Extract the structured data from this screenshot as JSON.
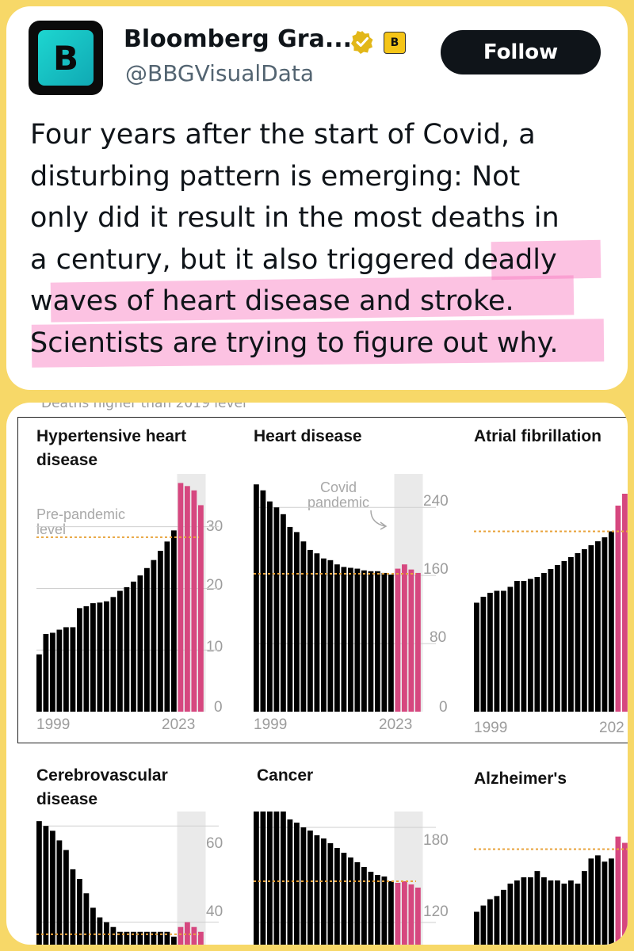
{
  "tweet": {
    "display_name": "Bloomberg Gra...",
    "handle": "@BBGVisualData",
    "avatar_letter": "B",
    "affiliate_letter": "B",
    "follow_label": "Follow",
    "lines": [
      "Four years after the start of Covid, a",
      "disturbing pattern is emerging: Not",
      "only did it result in the most deaths in",
      "a century, but it also triggered deadly",
      "waves of heart disease and stroke.",
      "Scientists are trying to figure out why."
    ]
  },
  "chart": {
    "cut_header": "Deaths higher than 2019 level",
    "colors": {
      "pre_pandemic": "#000000",
      "pandemic": "#d6477f",
      "reference": "#e8a33b",
      "shade": "#d9d9d9"
    },
    "annotations": {
      "covid_pandemic": "Covid\npandemic",
      "pre_pandemic_level": "Pre-pandemic\nlevel"
    },
    "panels": [
      {
        "title": "Hypertensive heart\ndisease",
        "x_start": "1999",
        "x_end": "2023",
        "y_ticks": [
          "30",
          "20",
          "10",
          "0"
        ]
      },
      {
        "title": "Heart disease",
        "x_start": "1999",
        "x_end": "2023",
        "y_ticks": [
          "240",
          "160",
          "80",
          "0"
        ]
      },
      {
        "title": "Atrial fibrillation",
        "x_start": "1999",
        "x_end": "202"
      },
      {
        "title": "Cerebrovascular\ndisease",
        "y_ticks": [
          "60",
          "40"
        ]
      },
      {
        "title": "Cancer",
        "y_ticks": [
          "180",
          "120"
        ]
      },
      {
        "title": "Alzheimer's"
      }
    ]
  },
  "chart_data": [
    {
      "type": "bar",
      "title": "Hypertensive heart disease",
      "x_start": 1999,
      "x_end": 2023,
      "ylim": [
        0,
        36
      ],
      "values": [
        9.3,
        12.6,
        12.8,
        13.3,
        13.7,
        13.7,
        16.8,
        17.1,
        17.6,
        17.7,
        17.9,
        18.6,
        19.6,
        20.2,
        21.1,
        22.1,
        23.3,
        24.6,
        26.1,
        27.6,
        29.4,
        37.1,
        36.6,
        35.9,
        33.5
      ],
      "reference": 28.3,
      "pandemic_from": 2020
    },
    {
      "type": "bar",
      "title": "Heart disease",
      "x_start": 1999,
      "x_end": 2023,
      "ylim": [
        0,
        270
      ],
      "values": [
        267,
        260,
        247,
        240,
        232,
        217,
        211,
        200,
        190,
        186,
        180,
        178,
        173,
        170,
        169,
        168,
        166,
        165,
        165,
        163,
        161,
        168,
        173,
        167,
        163
      ],
      "reference": 162,
      "pandemic_from": 2020
    },
    {
      "type": "bar",
      "title": "Atrial fibrillation",
      "x_start": 1999,
      "values": [
        55,
        58,
        60,
        61,
        61,
        63,
        66,
        66,
        67,
        68,
        70,
        72,
        74,
        76,
        78,
        80,
        82,
        84,
        86,
        88,
        91,
        104,
        110,
        107
      ],
      "reference": 91,
      "pandemic_from": 2020
    },
    {
      "type": "bar",
      "title": "Cerebrovascular disease",
      "ylim_visible": [
        35,
        63
      ],
      "values": [
        61,
        60,
        59,
        57,
        55,
        51,
        49,
        46,
        43,
        41,
        40,
        39,
        38,
        38,
        38,
        38,
        38,
        38,
        38,
        38,
        37,
        39,
        40,
        39,
        38
      ],
      "reference": 37.5,
      "pandemic_from": 2020
    },
    {
      "type": "bar",
      "title": "Cancer",
      "ylim_visible": [
        105,
        190
      ],
      "values": [
        200,
        199,
        197,
        193,
        190,
        185,
        183,
        180,
        178,
        175,
        173,
        170,
        167,
        164,
        161,
        158,
        155,
        152,
        150,
        149,
        146,
        145,
        146,
        144,
        142
      ],
      "reference": 146,
      "pandemic_from": 2020
    },
    {
      "type": "bar",
      "title": "Alzheimer's",
      "values": [
        16,
        18,
        20,
        21,
        23,
        25,
        26,
        27,
        27,
        29,
        27,
        26,
        26,
        25,
        26,
        25,
        29,
        33,
        34,
        32,
        33,
        40,
        38,
        38
      ],
      "reference": 36,
      "pandemic_from": 2020
    }
  ]
}
